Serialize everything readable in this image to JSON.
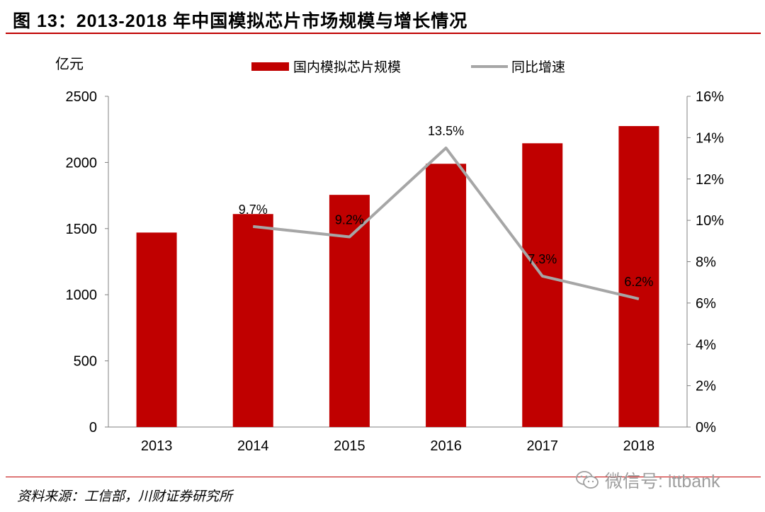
{
  "header": {
    "title": "图 13：2013-2018 年中国模拟芯片市场规模与增长情况"
  },
  "footer": {
    "source": "资料来源：工信部，川财证券研究所",
    "watermark": "微信号: ittbank"
  },
  "colors": {
    "bar": "#c00000",
    "line": "#a6a6a6",
    "accent": "#c00000"
  },
  "chart_data": {
    "type": "bar",
    "categories": [
      "2013",
      "2014",
      "2015",
      "2016",
      "2017",
      "2018"
    ],
    "series": [
      {
        "name": "国内模拟芯片规模",
        "type": "bar",
        "axis": "left",
        "values": [
          1470,
          1610,
          1755,
          1990,
          2145,
          2275
        ]
      },
      {
        "name": "同比增速",
        "type": "line",
        "axis": "right",
        "values": [
          null,
          9.7,
          9.2,
          13.5,
          7.3,
          6.2
        ],
        "labels": [
          "",
          "9.7%",
          "9.2%",
          "13.5%",
          "7.3%",
          "6.2%"
        ]
      }
    ],
    "y_left": {
      "unit": "亿元",
      "ylim": [
        0,
        2500
      ],
      "ticks": [
        "0",
        "500",
        "1000",
        "1500",
        "2000",
        "2500"
      ]
    },
    "y_right": {
      "ylim": [
        0,
        16
      ],
      "ticks": [
        "0%",
        "2%",
        "4%",
        "6%",
        "8%",
        "10%",
        "12%",
        "14%",
        "16%"
      ]
    },
    "legend": {
      "position": "top",
      "items": [
        "国内模拟芯片规模",
        "同比增速"
      ]
    },
    "grid": false
  }
}
